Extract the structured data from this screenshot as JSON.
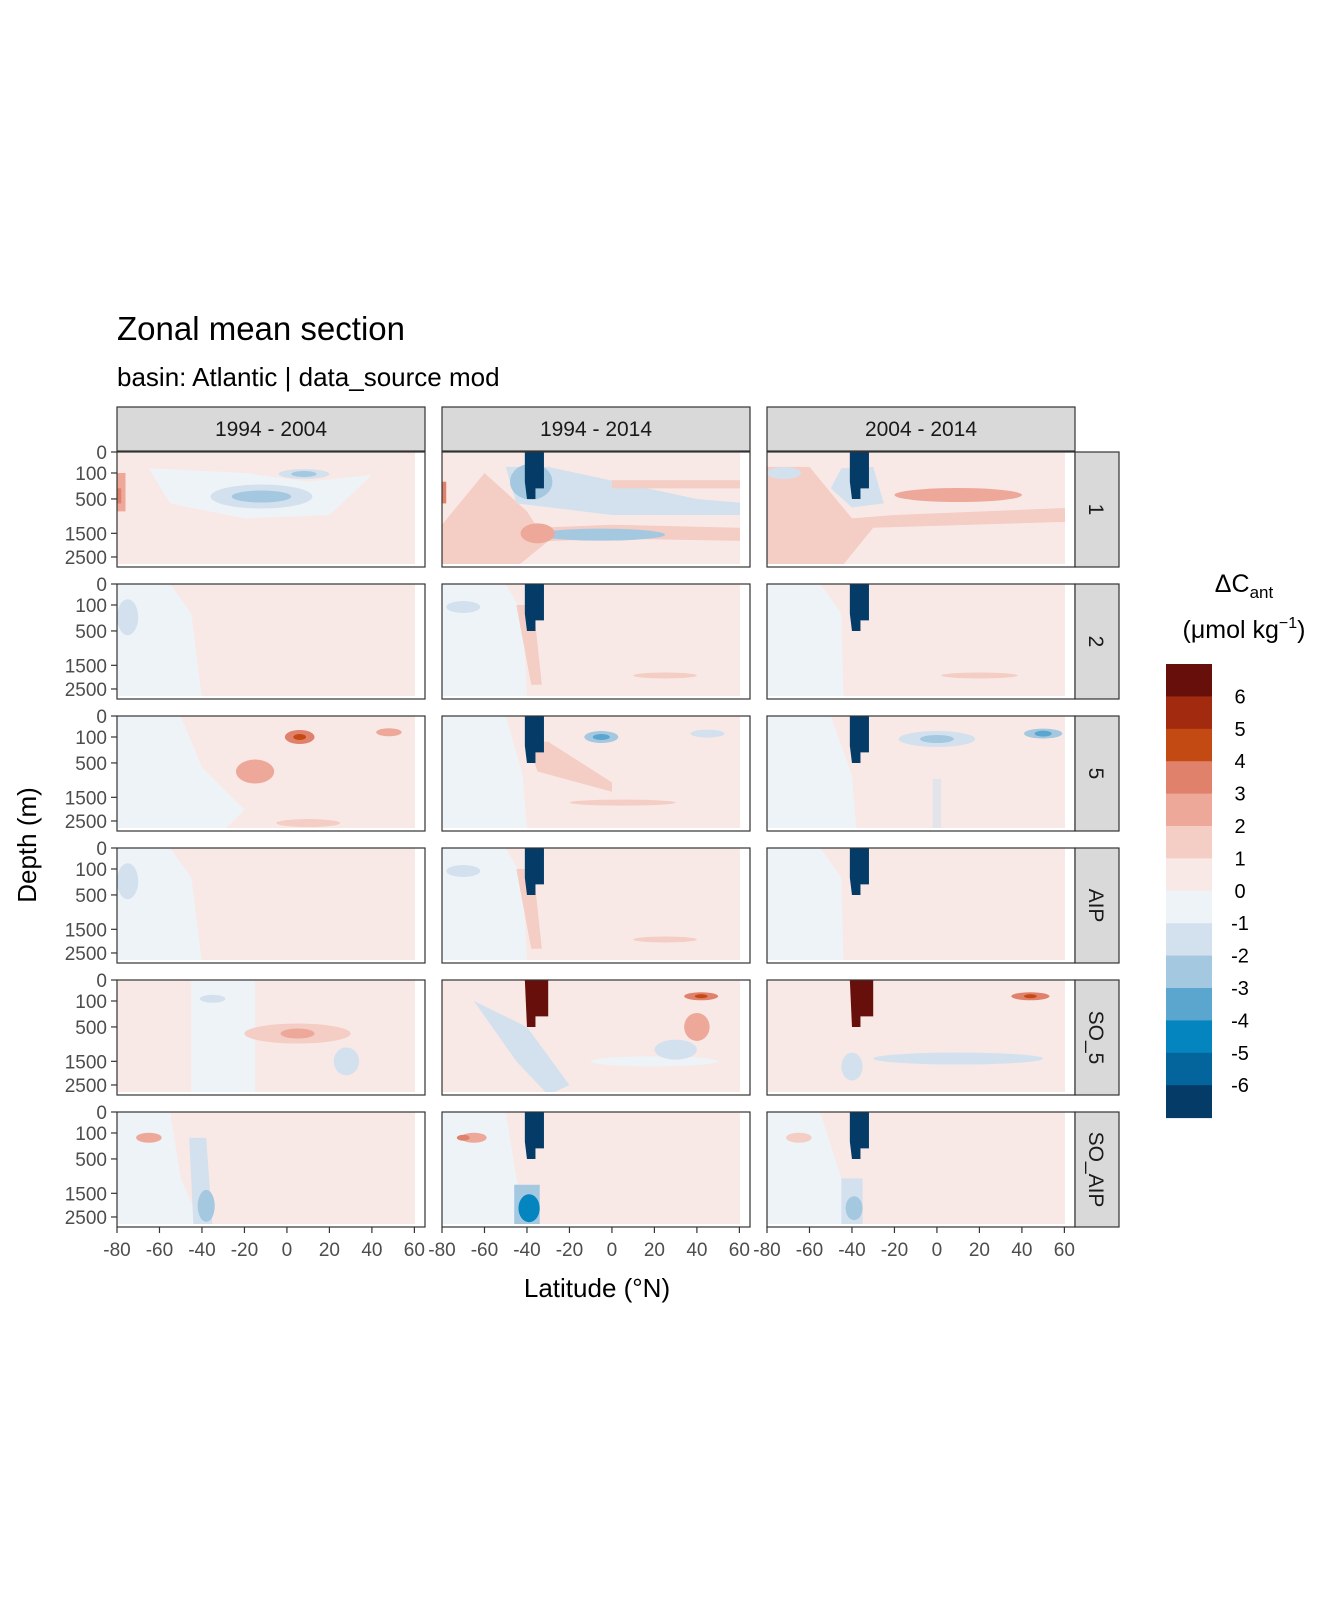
{
  "chart_data": {
    "type": "heatmap",
    "title": "Zonal mean section",
    "subtitle": "basin: Atlantic | data_source mod",
    "xlabel": "Latitude (°N)",
    "ylabel": "Depth (m)",
    "legend_title_main": "ΔC",
    "legend_title_sub": "ant",
    "legend_unit_pre": "(μmol kg",
    "legend_unit_sup": "−1",
    "legend_unit_post": ")",
    "legend_position": "right",
    "columns": [
      "1994 - 2004",
      "1994 - 2014",
      "2004 - 2014"
    ],
    "rows": [
      "1",
      "2",
      "5",
      "AIP",
      "SO_5",
      "SO_AIP"
    ],
    "xlim": [
      -80,
      65
    ],
    "x_ticks": [
      -80,
      -60,
      -40,
      -20,
      0,
      20,
      40,
      60
    ],
    "x_tick_labels": [
      "-80",
      "-60",
      "-40",
      "-20",
      "0",
      "20",
      "40",
      "60"
    ],
    "y_ticks": [
      0,
      100,
      500,
      1500,
      2500
    ],
    "y_tick_labels": [
      "0",
      "100",
      "500",
      "1500",
      "2500"
    ],
    "y_scale": "sqrt (reversed)",
    "ylim": [
      0,
      3000
    ],
    "color_levels": [
      {
        "label": "6",
        "color": "#67100b"
      },
      {
        "label": "5",
        "color": "#a12a0f"
      },
      {
        "label": "4",
        "color": "#c44a14"
      },
      {
        "label": "3",
        "color": "#e0816b"
      },
      {
        "label": "2",
        "color": "#eda89a"
      },
      {
        "label": "1",
        "color": "#f4cdc5"
      },
      {
        "label": "0",
        "color": "#f9e9e6"
      },
      {
        "label": "-1",
        "color": "#eef3f7"
      },
      {
        "label": "-2",
        "color": "#d3e1ee"
      },
      {
        "label": "-3",
        "color": "#a4c8e0"
      },
      {
        "label": "-4",
        "color": "#5aa6cf"
      },
      {
        "label": "-5",
        "color": "#0585bf"
      },
      {
        "label": "-6",
        "color": "#03659b"
      },
      {
        "label": "",
        "color": "#053b67"
      }
    ],
    "grid": false
  }
}
